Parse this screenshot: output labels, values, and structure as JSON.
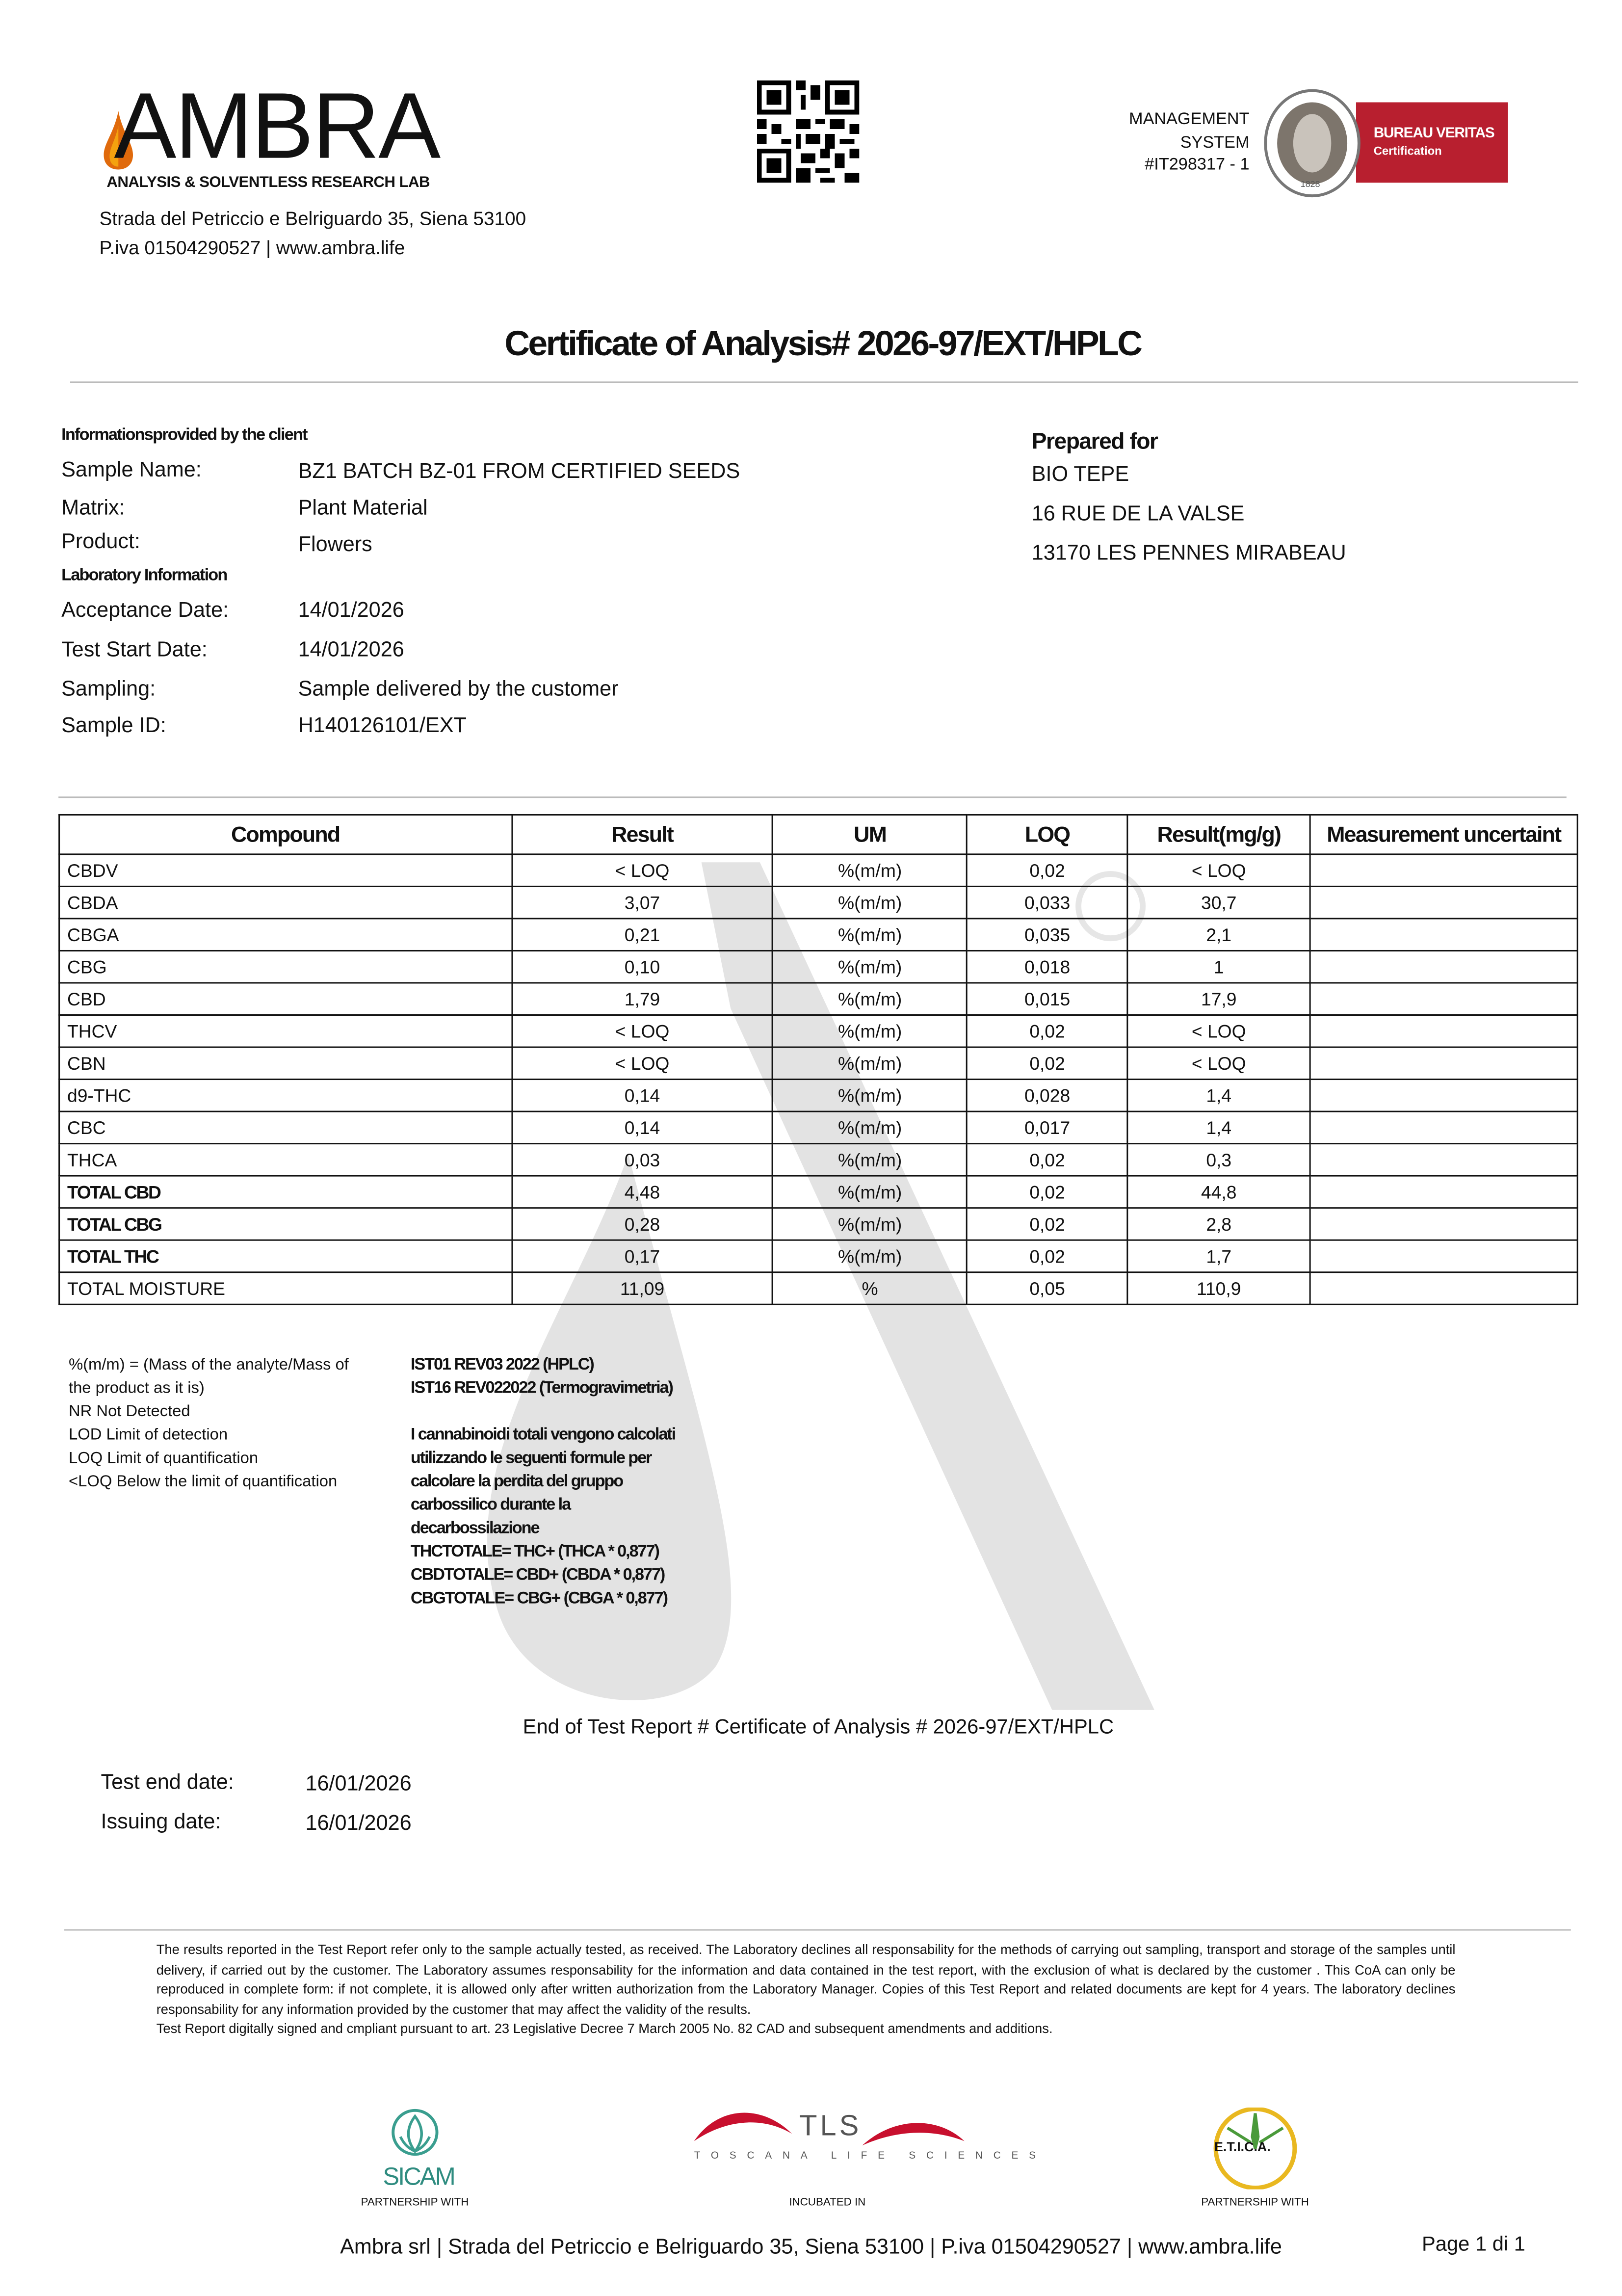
{
  "header": {
    "logo_text": "AMBRA",
    "logo_subtitle": "ANALYSIS & SOLVENTLESS RESEARCH LAB",
    "address": "Strada del Petriccio e Belriguardo 35, Siena 53100",
    "piva": "P.iva 01504290527 | www.ambra.life",
    "certification": {
      "line1": "MANAGEMENT",
      "line2": "SYSTEM",
      "line3": "#IT298317 - 1",
      "badge_title": "BUREAU VERITAS",
      "badge_sub": "Certification",
      "seal_year": "1828",
      "badge_color": "#b81f2f"
    }
  },
  "title": "Certificate of Analysis# 2026-97/EXT/HPLC",
  "client_info": {
    "heading": "Informationsprovided  by the client",
    "fields": [
      {
        "label": "Sample Name:",
        "value": "BZ1 BATCH BZ-01 FROM CERTIFIED SEEDS"
      },
      {
        "label": "Matrix:",
        "value": "Plant Material"
      },
      {
        "label": "Product:",
        "value": "Flowers"
      }
    ]
  },
  "lab_info": {
    "heading": "Laboratory Information",
    "fields": [
      {
        "label": "Acceptance Date:",
        "value": "14/01/2026"
      },
      {
        "label": "Test Start Date:",
        "value": "14/01/2026"
      },
      {
        "label": "Sampling:",
        "value": "Sample delivered by the customer"
      },
      {
        "label": "Sample ID:",
        "value": "H140126101/EXT"
      }
    ]
  },
  "prepared_for": {
    "heading": "Prepared for",
    "lines": [
      "BIO TEPE",
      "16 RUE DE LA VALSE",
      "13170 LES PENNES MIRABEAU"
    ]
  },
  "table": {
    "headers": [
      "Compound",
      "Result",
      "UM",
      "LOQ",
      "Result(mg/g)",
      "Measurement uncertaint"
    ],
    "rows": [
      [
        "CBDV",
        "< LOQ",
        "%(m/m)",
        "0,02",
        "< LOQ",
        ""
      ],
      [
        "CBDA",
        "3,07",
        "%(m/m)",
        "0,033",
        "30,7",
        ""
      ],
      [
        "CBGA",
        "0,21",
        "%(m/m)",
        "0,035",
        "2,1",
        ""
      ],
      [
        "CBG",
        "0,10",
        "%(m/m)",
        "0,018",
        "1",
        ""
      ],
      [
        "CBD",
        "1,79",
        "%(m/m)",
        "0,015",
        "17,9",
        ""
      ],
      [
        "THCV",
        "< LOQ",
        "%(m/m)",
        "0,02",
        "< LOQ",
        ""
      ],
      [
        "CBN",
        "< LOQ",
        "%(m/m)",
        "0,02",
        "< LOQ",
        ""
      ],
      [
        "d9-THC",
        "0,14",
        "%(m/m)",
        "0,028",
        "1,4",
        ""
      ],
      [
        "CBC",
        "0,14",
        "%(m/m)",
        "0,017",
        "1,4",
        ""
      ],
      [
        "THCA",
        "0,03",
        "%(m/m)",
        "0,02",
        "0,3",
        ""
      ],
      [
        "TOTAL CBD",
        "4,48",
        "%(m/m)",
        "0,02",
        "44,8",
        ""
      ],
      [
        "TOTAL CBG",
        "0,28",
        "%(m/m)",
        "0,02",
        "2,8",
        ""
      ],
      [
        "TOTAL THC",
        "0,17",
        "%(m/m)",
        "0,02",
        "1,7",
        ""
      ],
      [
        "TOTAL MOISTURE",
        "11,09",
        "%",
        "0,05",
        "110,9",
        ""
      ]
    ]
  },
  "notes_left": [
    "%(m/m) = (Mass of the analyte/Mass of",
    "the product as it is)",
    "NR Not Detected",
    "LOD Limit of detection",
    "LOQ Limit of quantification",
    "<LOQ Below the limit of quantification"
  ],
  "notes_right": [
    "IST01 REV03 2022  (HPLC)",
    "IST16 REV022022 (Termogravimetria)",
    "",
    "I cannabinoidi totali  vengono calcolati",
    "utilizzando le seguenti formule per",
    "calcolare la perdita del gruppo",
    "carbossilico durante  la",
    "decarbossilazione",
    "THCTOTALE= THC+ (THCA * 0,877)",
    "CBDTOTALE= CBD+ (CBDA *  0,877)",
    "CBGTOTALE= CBG+ (CBGA * 0,877)"
  ],
  "end_of_report": "End of Test Report # Certificate of Analysis # 2026-97/EXT/HPLC",
  "dates": [
    {
      "label": "Test end date:",
      "value": "16/01/2026"
    },
    {
      "label": "Issuing date:",
      "value": "16/01/2026"
    }
  ],
  "disclaimer": [
    "The results reported in the Test Report refer only to the sample actually tested, as received. The Laboratory declines all responsability for the methods of carrying out sampling, transport and storage of the samples until delivery, if carried out by the customer. The Laboratory assumes responsability for the information and data contained in the test report, with the exclusion of what is declared by the customer . This CoA can only be reproduced in complete form: if not complete, it is allowed only after written authorization from the Laboratory Manager. Copies of this Test Report and related documents are kept for 4 years. The laboratory declines responsability for any information provided by the customer that may affect the validity of the results.",
    "Test Report digitally signed and cmpliant pursuant to art. 23 Legislative Decree 7 March 2005 No. 82 CAD and subsequent amendments and additions."
  ],
  "partners": [
    {
      "name": "SICAM",
      "caption": "PARTNERSHIP WITH"
    },
    {
      "name": "TLS",
      "subtitle": "TOSCANA LIFE SCIENCES",
      "caption": "INCUBATED IN"
    },
    {
      "name": "E.T.I.C.A.",
      "caption": "PARTNERSHIP WITH"
    }
  ],
  "footer": {
    "company_line": "Ambra srl | Strada del Petriccio e Belriguardo 35, Siena 53100 | P.iva 01504290527 | www.ambra.life",
    "page": "Page 1 di 1"
  }
}
